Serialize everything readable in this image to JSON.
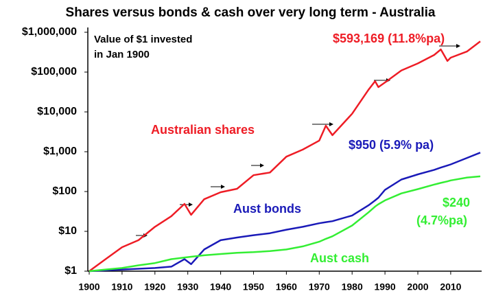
{
  "chart_data": {
    "type": "line",
    "title": "Shares versus bonds & cash over very long term - Australia",
    "x": [
      1900,
      1905,
      1910,
      1915,
      1920,
      1925,
      1929,
      1931,
      1935,
      1940,
      1945,
      1950,
      1955,
      1960,
      1965,
      1970,
      1972,
      1974,
      1980,
      1985,
      1987,
      1988,
      1990,
      1995,
      2000,
      2005,
      2007,
      2009,
      2010,
      2015,
      2019
    ],
    "series": [
      {
        "name": "Australian shares",
        "color": "#ee1c25",
        "values": [
          1,
          2,
          4,
          6,
          13,
          24,
          49,
          26,
          64,
          96,
          117,
          257,
          300,
          750,
          1130,
          1900,
          4500,
          2600,
          9000,
          36000,
          59000,
          42000,
          55000,
          110000,
          165000,
          270000,
          370000,
          190000,
          230000,
          330000,
          593169
        ]
      },
      {
        "name": "Aust bonds",
        "color": "#1a1ab8",
        "values": [
          1,
          1.05,
          1.1,
          1.15,
          1.2,
          1.3,
          2,
          1.5,
          3.5,
          6,
          7,
          8,
          9,
          11,
          13,
          16,
          17,
          18,
          25,
          45,
          60,
          70,
          110,
          200,
          270,
          350,
          400,
          450,
          480,
          700,
          950
        ]
      },
      {
        "name": "Aust cash",
        "color": "#33ee33",
        "values": [
          1,
          1.1,
          1.2,
          1.4,
          1.6,
          2,
          2.2,
          2.3,
          2.5,
          2.7,
          2.9,
          3,
          3.2,
          3.5,
          4.2,
          5.5,
          6.5,
          7.5,
          14,
          30,
          42,
          48,
          60,
          90,
          115,
          150,
          165,
          180,
          190,
          225,
          240
        ]
      }
    ],
    "annotations": [
      {
        "text": "Value of $1 invested",
        "color": "#000000"
      },
      {
        "text": "in Jan 1900",
        "color": "#000000"
      },
      {
        "text": "$593,169 (11.8%pa)",
        "color": "#ee1c25"
      },
      {
        "text": "$950 (5.9% pa)",
        "color": "#1a1ab8"
      },
      {
        "text": "$240",
        "color": "#33ee33"
      },
      {
        "text": "(4.7%pa)",
        "color": "#33ee33"
      }
    ],
    "xlim": [
      1900,
      2019
    ],
    "xticks": [
      1900,
      1910,
      1920,
      1930,
      1940,
      1950,
      1960,
      1970,
      1980,
      1990,
      2000,
      2010
    ],
    "ylim": [
      1,
      1000000
    ],
    "log_y": true,
    "yticks": [
      {
        "value": 1,
        "label": "$1"
      },
      {
        "value": 10,
        "label": "$10"
      },
      {
        "value": 100,
        "label": "$100"
      },
      {
        "value": 1000,
        "label": "$1,000"
      },
      {
        "value": 10000,
        "label": "$10,000"
      },
      {
        "value": 100000,
        "label": "$100,000"
      },
      {
        "value": 1000000,
        "label": "$1,000,000"
      }
    ]
  }
}
